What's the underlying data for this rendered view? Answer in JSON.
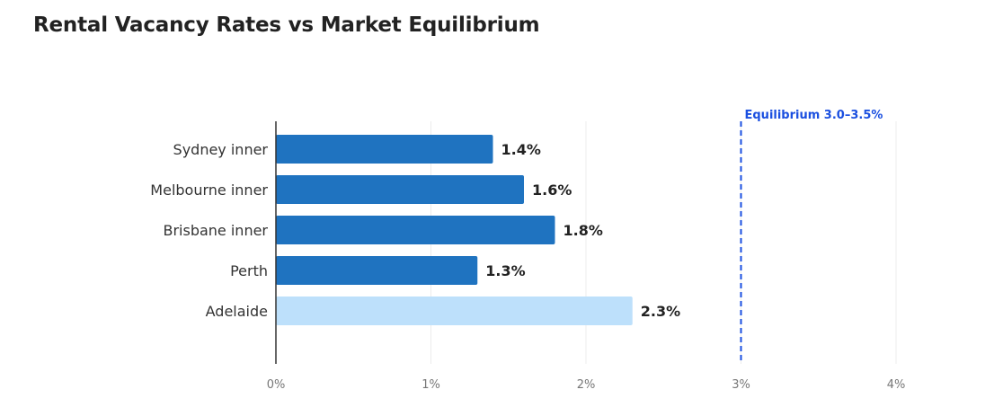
{
  "title": "Rental Vacancy Rates vs Market Equilibrium",
  "chart_data": {
    "type": "bar",
    "orientation": "horizontal",
    "title": "Rental Vacancy Rates vs Market Equilibrium",
    "categories": [
      "Sydney inner",
      "Melbourne inner",
      "Brisbane inner",
      "Perth",
      "Adelaide"
    ],
    "values": [
      1.4,
      1.6,
      1.8,
      1.3,
      2.3
    ],
    "value_labels": [
      "1.4%",
      "1.6%",
      "1.8%",
      "1.3%",
      "2.3%"
    ],
    "bar_colors": [
      "#1f73c0",
      "#1f73c0",
      "#1f73c0",
      "#1f73c0",
      "#bde0fb"
    ],
    "xlim": [
      0,
      4
    ],
    "x_ticks": [
      0,
      1,
      2,
      3,
      4
    ],
    "x_tick_labels": [
      "0%",
      "1%",
      "2%",
      "3%",
      "4%"
    ],
    "grid": "vertical",
    "reference_line": {
      "value": 3,
      "label": "Equilibrium 3.0–3.5%",
      "color": "#1a4fe0",
      "style": "dashed"
    },
    "xlabel": "",
    "ylabel": ""
  }
}
